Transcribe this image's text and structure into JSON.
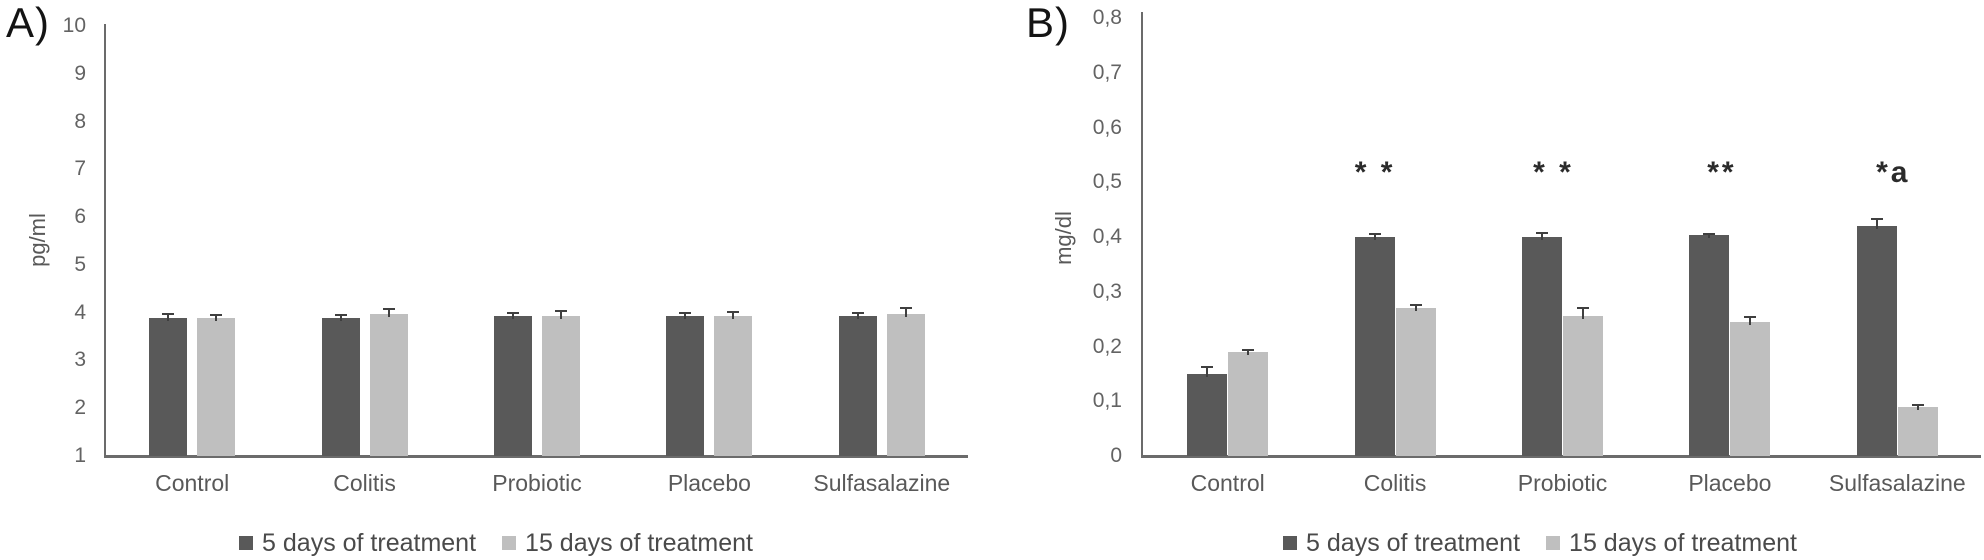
{
  "figure": {
    "type": "two-panel grouped bar chart with error bars",
    "colors": {
      "background": "#ffffff",
      "bar_5_days": "#595959",
      "bar_15_days": "#bfbfbf",
      "axis": "#6b6b6b",
      "error_bar": "#3f3f3f",
      "tick_text": "#636363",
      "category_text": "#595959",
      "legend_text": "#4a4a4a",
      "annotation_text": "#2b2b2b",
      "panel_label_text": "#141414"
    }
  },
  "chart_data": [
    {
      "type": "bar",
      "panel_label": "A)",
      "title": "",
      "xlabel": "",
      "ylabel": "pg/ml",
      "ylim": [
        1,
        10
      ],
      "ytick_values": [
        10,
        9,
        8,
        7,
        6,
        5,
        4,
        3,
        2,
        1
      ],
      "ytick_labels": [
        "10",
        "9",
        "8",
        "7",
        "6",
        "5",
        "4",
        "3",
        "2",
        "1"
      ],
      "categories": [
        "Control",
        "Colitis",
        "Probiotic",
        "Placebo",
        "Sulfasalazine"
      ],
      "series": [
        {
          "name": "5 days of treatment",
          "color": "#595959",
          "values": [
            3.88,
            3.89,
            3.94,
            3.93,
            3.93
          ],
          "errors": [
            0.1,
            0.06,
            0.05,
            0.07,
            0.07
          ]
        },
        {
          "name": "15 days of treatment",
          "color": "#bfbfbf",
          "values": [
            3.88,
            3.97,
            3.92,
            3.93,
            3.98
          ],
          "errors": [
            0.08,
            0.11,
            0.12,
            0.08,
            0.11
          ]
        }
      ],
      "annotations": [],
      "grid": false,
      "legend_position": "bottom"
    },
    {
      "type": "bar",
      "panel_label": "B)",
      "title": "",
      "xlabel": "",
      "ylabel": "mg/dl",
      "ylim": [
        0,
        0.8
      ],
      "ytick_values": [
        0.8,
        0.7,
        0.6,
        0.5,
        0.4,
        0.3,
        0.2,
        0.1,
        0
      ],
      "ytick_labels": [
        "0,8",
        "0,7",
        "0,6",
        "0,5",
        "0,4",
        "0,3",
        "0,2",
        "0,1",
        "0"
      ],
      "categories": [
        "Control",
        "Colitis",
        "Probiotic",
        "Placebo",
        "Sulfasalazine"
      ],
      "series": [
        {
          "name": "5 days of treatment",
          "color": "#595959",
          "values": [
            0.15,
            0.4,
            0.4,
            0.403,
            0.42
          ],
          "errors": [
            0.013,
            0.006,
            0.007,
            0.003,
            0.012
          ]
        },
        {
          "name": "15 days of treatment",
          "color": "#bfbfbf",
          "values": [
            0.19,
            0.27,
            0.255,
            0.245,
            0.09
          ],
          "errors": [
            0.003,
            0.006,
            0.015,
            0.008,
            0.004
          ]
        }
      ],
      "annotations": [
        {
          "category_index": 1,
          "text": "* *",
          "dx": -20
        },
        {
          "category_index": 2,
          "text": "* *",
          "dx": -9
        },
        {
          "category_index": 3,
          "text": "**",
          "dx": -8
        },
        {
          "category_index": 4,
          "text": "*a",
          "dx": -4
        }
      ],
      "grid": false,
      "legend_position": "bottom"
    }
  ]
}
